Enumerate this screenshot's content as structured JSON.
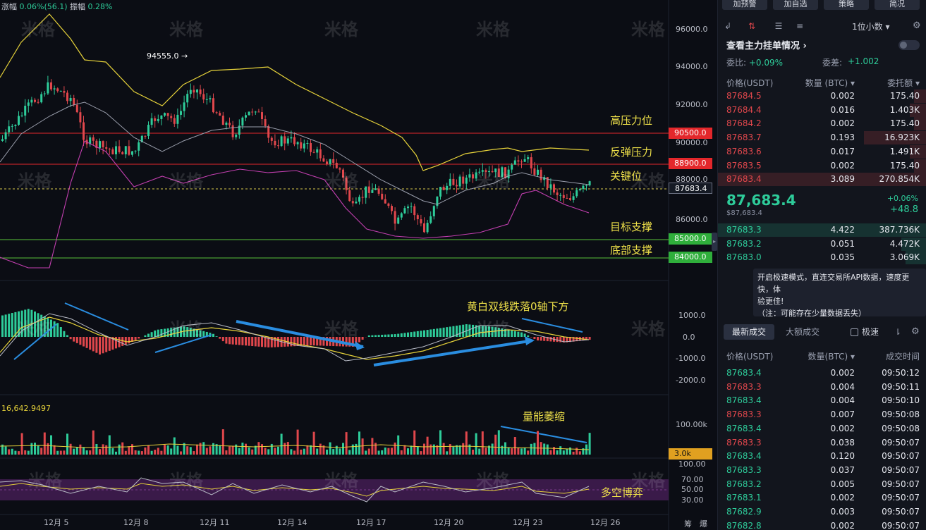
{
  "top_info": {
    "change_label": "涨幅",
    "change_value": "0.06%(56.1)",
    "amp_label": "振幅",
    "amp_value": "0.28%"
  },
  "watermark": "米格",
  "price_axis": [
    "96000.0",
    "94000.0",
    "92000.0",
    "90000.0",
    "88000.0",
    "86000.0"
  ],
  "price_tags": [
    {
      "value": "90500.0",
      "color": "#e3272b"
    },
    {
      "value": "88900.0",
      "color": "#e3272b"
    },
    {
      "value": "87683.4",
      "color": "#151a24"
    },
    {
      "value": "85000.0",
      "color": "#2fae3b"
    },
    {
      "value": "84000.0",
      "color": "#2fae3b"
    }
  ],
  "high_marker": "94555.0 →",
  "annotations": {
    "high_pressure": "高压力位",
    "rebound_pressure": "反弹压力",
    "key_level": "关键位",
    "target_support": "目标支撑",
    "bottom_support": "底部支撑",
    "macd_note": "黄白双线跌落0轴下方",
    "volume_note": "量能萎缩",
    "long_short": "多空博弈"
  },
  "macd_axis": [
    "1000.0",
    "0.0",
    "-1000.0",
    "-2000.0"
  ],
  "volume_label": "16,642.9497",
  "volume_axis": [
    "100.00k"
  ],
  "volume_tag": "3.0k",
  "osc_axis": [
    "100.00",
    "70.00",
    "50.00",
    "30.00"
  ],
  "date_axis": [
    "12月 5",
    "12月 8",
    "12月 11",
    "12月 14",
    "12月 17",
    "12月 20",
    "12月 23",
    "12月 26"
  ],
  "axis_corner": [
    "筹",
    "爆"
  ],
  "right_panel": {
    "top_buttons": [
      "加预警",
      "加自选",
      "策略",
      "简况"
    ],
    "decimal_select": "1位小数 ▾",
    "main_force": "查看主力挂单情况 ›",
    "ratio_label": "委比:",
    "ratio_value": "+0.09%",
    "diff_label": "委差:",
    "diff_value": "+1.002",
    "ob_headers": [
      "价格(USDT)",
      "数量 (BTC) ▾",
      "委托额 ▾"
    ],
    "asks": [
      [
        "87684.5",
        "0.002",
        "175.40"
      ],
      [
        "87684.4",
        "0.016",
        "1.403K"
      ],
      [
        "87684.2",
        "0.002",
        "175.40"
      ],
      [
        "87683.7",
        "0.193",
        "16.923K"
      ],
      [
        "87683.6",
        "0.017",
        "1.491K"
      ],
      [
        "87683.5",
        "0.002",
        "175.40"
      ],
      [
        "87683.4",
        "3.089",
        "270.854K"
      ]
    ],
    "mid_price": "87,683.4",
    "mid_usd": "$87,683.4",
    "mid_pct": "+0.06%",
    "mid_change": "+48.8",
    "bids": [
      [
        "87683.3",
        "4.422",
        "387.736K"
      ],
      [
        "87683.2",
        "0.051",
        "4.472K"
      ],
      [
        "87683.0",
        "0.035",
        "3.069K"
      ]
    ],
    "tooltip": [
      "开启极速模式，直连交易所API数据，速度更快，体",
      "验更佳!",
      "（注：可能存在少量数据丢失）"
    ],
    "tab_latest": "最新成交",
    "tab_big": "大额成交",
    "fast_label": "极速",
    "tr_headers": [
      "价格(USDT)",
      "数量(BTC) ▾",
      "成交时间"
    ],
    "trades": [
      [
        "87683.4",
        "0.002",
        "09:50:12",
        "up"
      ],
      [
        "87683.3",
        "0.004",
        "09:50:11",
        "dn"
      ],
      [
        "87683.4",
        "0.004",
        "09:50:10",
        "up"
      ],
      [
        "87683.3",
        "0.007",
        "09:50:08",
        "dn"
      ],
      [
        "87683.4",
        "0.002",
        "09:50:08",
        "up"
      ],
      [
        "87683.3",
        "0.038",
        "09:50:07",
        "dn"
      ],
      [
        "87683.4",
        "0.120",
        "09:50:07",
        "up"
      ],
      [
        "87683.3",
        "0.037",
        "09:50:07",
        "up"
      ],
      [
        "87683.2",
        "0.005",
        "09:50:07",
        "up"
      ],
      [
        "87683.1",
        "0.002",
        "09:50:07",
        "up"
      ],
      [
        "87682.9",
        "0.003",
        "09:50:07",
        "up"
      ],
      [
        "87682.8",
        "0.002",
        "09:50:07",
        "up"
      ]
    ]
  },
  "colors": {
    "up": "#2ecc9a",
    "down": "#e0474c",
    "accent_yellow": "#f0e24a"
  }
}
